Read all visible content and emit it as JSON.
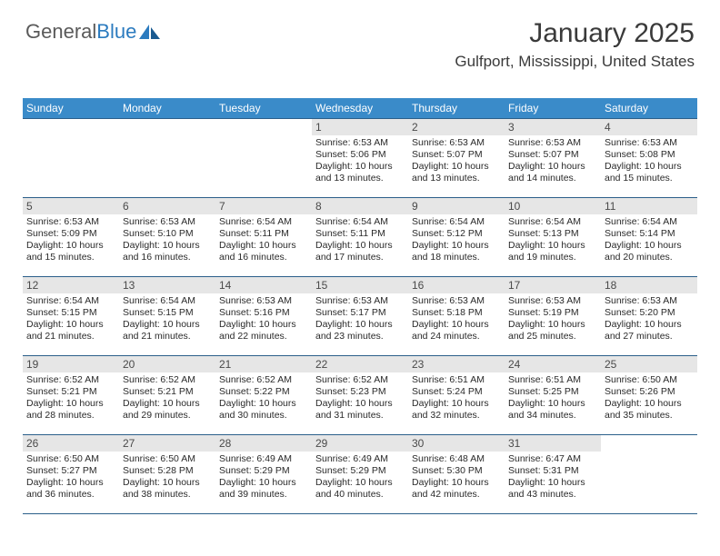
{
  "logo": {
    "text1": "General",
    "text2": "Blue"
  },
  "header": {
    "title": "January 2025",
    "location": "Gulfport, Mississippi, United States"
  },
  "colors": {
    "header_bg": "#3a8bc9",
    "header_text": "#ffffff",
    "daynum_bg": "#e6e6e6",
    "week_border": "#2b5f8a",
    "body_text": "#2a2a2a",
    "logo_gray": "#5a5a5a",
    "logo_blue": "#2b7bbf"
  },
  "day_names": [
    "Sunday",
    "Monday",
    "Tuesday",
    "Wednesday",
    "Thursday",
    "Friday",
    "Saturday"
  ],
  "weeks": [
    [
      {
        "n": "",
        "sr": "",
        "ss": "",
        "dl": ""
      },
      {
        "n": "",
        "sr": "",
        "ss": "",
        "dl": ""
      },
      {
        "n": "",
        "sr": "",
        "ss": "",
        "dl": ""
      },
      {
        "n": "1",
        "sr": "Sunrise: 6:53 AM",
        "ss": "Sunset: 5:06 PM",
        "dl": "Daylight: 10 hours and 13 minutes."
      },
      {
        "n": "2",
        "sr": "Sunrise: 6:53 AM",
        "ss": "Sunset: 5:07 PM",
        "dl": "Daylight: 10 hours and 13 minutes."
      },
      {
        "n": "3",
        "sr": "Sunrise: 6:53 AM",
        "ss": "Sunset: 5:07 PM",
        "dl": "Daylight: 10 hours and 14 minutes."
      },
      {
        "n": "4",
        "sr": "Sunrise: 6:53 AM",
        "ss": "Sunset: 5:08 PM",
        "dl": "Daylight: 10 hours and 15 minutes."
      }
    ],
    [
      {
        "n": "5",
        "sr": "Sunrise: 6:53 AM",
        "ss": "Sunset: 5:09 PM",
        "dl": "Daylight: 10 hours and 15 minutes."
      },
      {
        "n": "6",
        "sr": "Sunrise: 6:53 AM",
        "ss": "Sunset: 5:10 PM",
        "dl": "Daylight: 10 hours and 16 minutes."
      },
      {
        "n": "7",
        "sr": "Sunrise: 6:54 AM",
        "ss": "Sunset: 5:11 PM",
        "dl": "Daylight: 10 hours and 16 minutes."
      },
      {
        "n": "8",
        "sr": "Sunrise: 6:54 AM",
        "ss": "Sunset: 5:11 PM",
        "dl": "Daylight: 10 hours and 17 minutes."
      },
      {
        "n": "9",
        "sr": "Sunrise: 6:54 AM",
        "ss": "Sunset: 5:12 PM",
        "dl": "Daylight: 10 hours and 18 minutes."
      },
      {
        "n": "10",
        "sr": "Sunrise: 6:54 AM",
        "ss": "Sunset: 5:13 PM",
        "dl": "Daylight: 10 hours and 19 minutes."
      },
      {
        "n": "11",
        "sr": "Sunrise: 6:54 AM",
        "ss": "Sunset: 5:14 PM",
        "dl": "Daylight: 10 hours and 20 minutes."
      }
    ],
    [
      {
        "n": "12",
        "sr": "Sunrise: 6:54 AM",
        "ss": "Sunset: 5:15 PM",
        "dl": "Daylight: 10 hours and 21 minutes."
      },
      {
        "n": "13",
        "sr": "Sunrise: 6:54 AM",
        "ss": "Sunset: 5:15 PM",
        "dl": "Daylight: 10 hours and 21 minutes."
      },
      {
        "n": "14",
        "sr": "Sunrise: 6:53 AM",
        "ss": "Sunset: 5:16 PM",
        "dl": "Daylight: 10 hours and 22 minutes."
      },
      {
        "n": "15",
        "sr": "Sunrise: 6:53 AM",
        "ss": "Sunset: 5:17 PM",
        "dl": "Daylight: 10 hours and 23 minutes."
      },
      {
        "n": "16",
        "sr": "Sunrise: 6:53 AM",
        "ss": "Sunset: 5:18 PM",
        "dl": "Daylight: 10 hours and 24 minutes."
      },
      {
        "n": "17",
        "sr": "Sunrise: 6:53 AM",
        "ss": "Sunset: 5:19 PM",
        "dl": "Daylight: 10 hours and 25 minutes."
      },
      {
        "n": "18",
        "sr": "Sunrise: 6:53 AM",
        "ss": "Sunset: 5:20 PM",
        "dl": "Daylight: 10 hours and 27 minutes."
      }
    ],
    [
      {
        "n": "19",
        "sr": "Sunrise: 6:52 AM",
        "ss": "Sunset: 5:21 PM",
        "dl": "Daylight: 10 hours and 28 minutes."
      },
      {
        "n": "20",
        "sr": "Sunrise: 6:52 AM",
        "ss": "Sunset: 5:21 PM",
        "dl": "Daylight: 10 hours and 29 minutes."
      },
      {
        "n": "21",
        "sr": "Sunrise: 6:52 AM",
        "ss": "Sunset: 5:22 PM",
        "dl": "Daylight: 10 hours and 30 minutes."
      },
      {
        "n": "22",
        "sr": "Sunrise: 6:52 AM",
        "ss": "Sunset: 5:23 PM",
        "dl": "Daylight: 10 hours and 31 minutes."
      },
      {
        "n": "23",
        "sr": "Sunrise: 6:51 AM",
        "ss": "Sunset: 5:24 PM",
        "dl": "Daylight: 10 hours and 32 minutes."
      },
      {
        "n": "24",
        "sr": "Sunrise: 6:51 AM",
        "ss": "Sunset: 5:25 PM",
        "dl": "Daylight: 10 hours and 34 minutes."
      },
      {
        "n": "25",
        "sr": "Sunrise: 6:50 AM",
        "ss": "Sunset: 5:26 PM",
        "dl": "Daylight: 10 hours and 35 minutes."
      }
    ],
    [
      {
        "n": "26",
        "sr": "Sunrise: 6:50 AM",
        "ss": "Sunset: 5:27 PM",
        "dl": "Daylight: 10 hours and 36 minutes."
      },
      {
        "n": "27",
        "sr": "Sunrise: 6:50 AM",
        "ss": "Sunset: 5:28 PM",
        "dl": "Daylight: 10 hours and 38 minutes."
      },
      {
        "n": "28",
        "sr": "Sunrise: 6:49 AM",
        "ss": "Sunset: 5:29 PM",
        "dl": "Daylight: 10 hours and 39 minutes."
      },
      {
        "n": "29",
        "sr": "Sunrise: 6:49 AM",
        "ss": "Sunset: 5:29 PM",
        "dl": "Daylight: 10 hours and 40 minutes."
      },
      {
        "n": "30",
        "sr": "Sunrise: 6:48 AM",
        "ss": "Sunset: 5:30 PM",
        "dl": "Daylight: 10 hours and 42 minutes."
      },
      {
        "n": "31",
        "sr": "Sunrise: 6:47 AM",
        "ss": "Sunset: 5:31 PM",
        "dl": "Daylight: 10 hours and 43 minutes."
      },
      {
        "n": "",
        "sr": "",
        "ss": "",
        "dl": ""
      }
    ]
  ]
}
